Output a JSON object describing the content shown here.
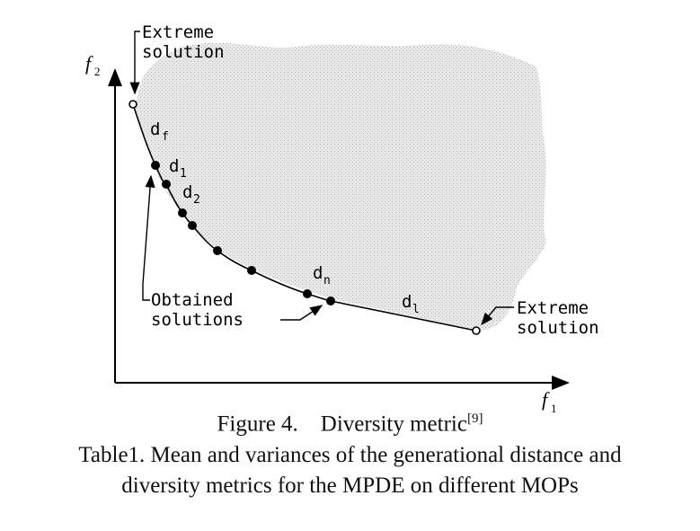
{
  "diagram": {
    "axis_x_label": "f",
    "axis_x_sub": "1",
    "axis_y_label": "f",
    "axis_y_sub": "2",
    "extreme_top_label_1": "Extreme",
    "extreme_top_label_2": "solution",
    "extreme_right_label_1": "Extreme",
    "extreme_right_label_2": "solution",
    "obtained_label_1": "Obtained",
    "obtained_label_2": "solutions",
    "d_f": "d",
    "d_f_sub": "f",
    "d_1": "d",
    "d_1_sub": "1",
    "d_2": "d",
    "d_2_sub": "2",
    "d_n": "d",
    "d_n_sub": "n",
    "d_l": "d",
    "d_l_sub": "l",
    "colors": {
      "ink": "#000000",
      "region": "#d9d9d9"
    }
  },
  "figure_caption": "Figure 4.    Diversity metric",
  "figure_caption_ref": "[9]",
  "table_caption_line1": "Table1. Mean and variances of the generational distance and",
  "table_caption_line2": "diversity metrics for the MPDE on different MOPs"
}
